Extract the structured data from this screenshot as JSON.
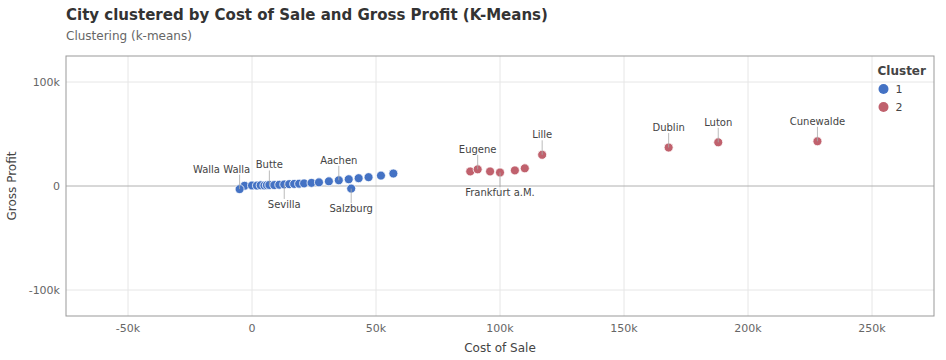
{
  "chart_data": {
    "type": "scatter",
    "title": "City clustered by Cost of Sale and Gross Profit (K-Means)",
    "subtitle": "Clustering (k-means)",
    "x_label": "Cost of Sale",
    "y_label": "Gross Profit",
    "xlim": [
      -75000,
      275000
    ],
    "ylim": [
      -125000,
      125000
    ],
    "xticks": [
      {
        "value": -50000,
        "label": "-50k"
      },
      0,
      {
        "value": 50000,
        "label": "50k"
      },
      {
        "value": 100000,
        "label": "100k"
      },
      {
        "value": 150000,
        "label": "150k"
      },
      {
        "value": 200000,
        "label": "200k"
      },
      {
        "value": 250000,
        "label": "250k"
      }
    ],
    "yticks": [
      {
        "value": -100000,
        "label": "-100k"
      },
      0,
      {
        "value": 100000,
        "label": "100k"
      }
    ],
    "grid": true,
    "legend": "upper right",
    "legend_title": "Cluster",
    "series": [
      {
        "name": "1",
        "color": "#4472c4",
        "x": [
          -3000,
          0,
          2000,
          3500,
          5000,
          6000,
          7000,
          9000,
          11000,
          13000,
          15000,
          17000,
          19000,
          21000,
          24000,
          27000,
          31000,
          35000,
          39000,
          43000,
          47000,
          52000,
          57000,
          -5000,
          40000
        ],
        "values": [
          200,
          500,
          400,
          700,
          500,
          800,
          1000,
          900,
          1200,
          1500,
          1800,
          2000,
          2200,
          2500,
          3000,
          3500,
          4500,
          5500,
          6500,
          7500,
          8500,
          10000,
          12000,
          -3000,
          -2500
        ]
      },
      {
        "name": "2",
        "color": "#c0616d",
        "x": [
          88000,
          91000,
          96000,
          100000,
          106000,
          110000,
          117000,
          168000,
          188000,
          228000
        ],
        "values": [
          14000,
          16000,
          14000,
          13000,
          15000,
          17000,
          30000,
          37000,
          42000,
          43000
        ]
      }
    ],
    "annotations": [
      {
        "text": "Butte",
        "x": 7000,
        "y": 1000
      },
      {
        "text": "Sevilla",
        "x": 13000,
        "y": 1500
      },
      {
        "text": "Aachen",
        "x": 35000,
        "y": 5500
      },
      {
        "text": "Walla Walla",
        "x": -5000,
        "y": -3000
      },
      {
        "text": "Salzburg",
        "x": 40000,
        "y": -2500
      },
      {
        "text": "Eugene",
        "x": 91000,
        "y": 16000
      },
      {
        "text": "Frankfurt a.M.",
        "x": 100000,
        "y": 13000
      },
      {
        "text": "Lille",
        "x": 117000,
        "y": 30000
      },
      {
        "text": "Dublin",
        "x": 168000,
        "y": 37000
      },
      {
        "text": "Luton",
        "x": 188000,
        "y": 42000
      },
      {
        "text": "Cunewalde",
        "x": 228000,
        "y": 43000
      }
    ]
  }
}
